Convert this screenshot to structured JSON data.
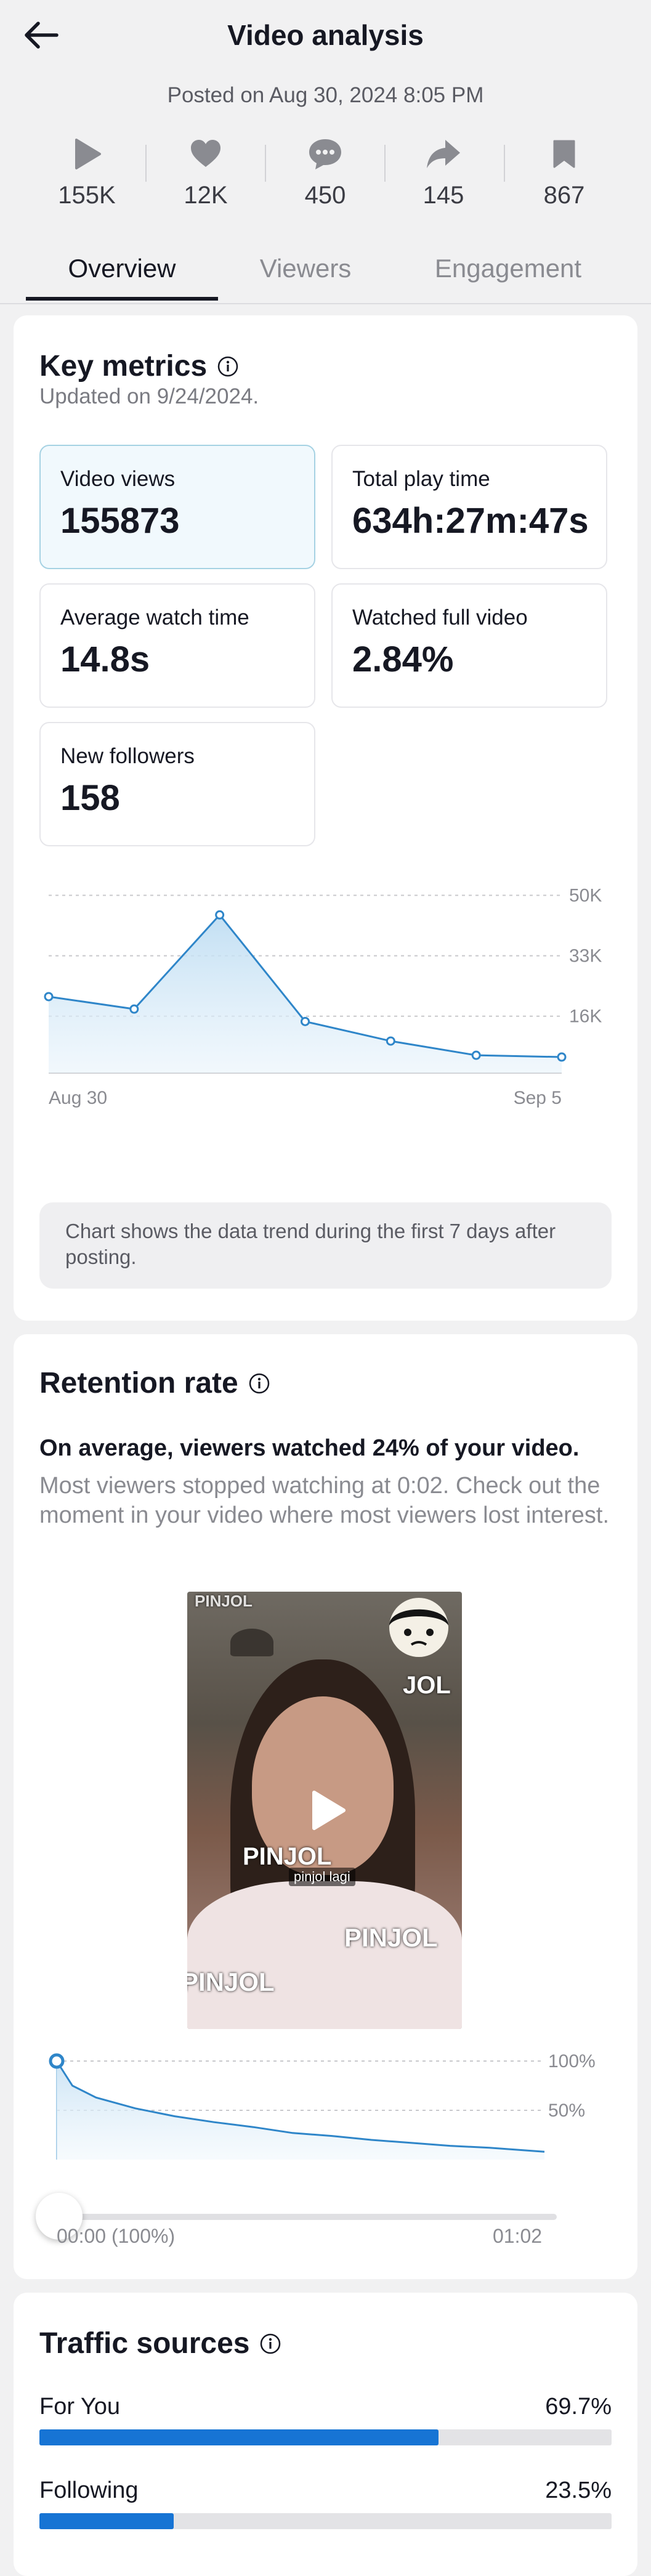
{
  "header": {
    "title": "Video analysis",
    "posted": "Posted on Aug 30, 2024 8:05 PM",
    "back_icon": "arrow-left-icon"
  },
  "stats": [
    {
      "icon": "play-icon",
      "value": "155K"
    },
    {
      "icon": "heart-icon",
      "value": "12K"
    },
    {
      "icon": "comment-icon",
      "value": "450"
    },
    {
      "icon": "share-icon",
      "value": "145"
    },
    {
      "icon": "bookmark-icon",
      "value": "867"
    }
  ],
  "tabs": [
    {
      "label": "Overview",
      "active": true
    },
    {
      "label": "Viewers",
      "active": false
    },
    {
      "label": "Engagement",
      "active": false
    }
  ],
  "key_metrics": {
    "title": "Key metrics",
    "updated": "Updated on 9/24/2024.",
    "metrics": [
      {
        "label": "Video views",
        "value": "155873",
        "selected": true
      },
      {
        "label": "Total play time",
        "value": "634h:27m:47s",
        "selected": false
      },
      {
        "label": "Average watch time",
        "value": "14.8s",
        "selected": false
      },
      {
        "label": "Watched full video",
        "value": "2.84%",
        "selected": false
      },
      {
        "label": "New followers",
        "value": "158",
        "selected": false
      }
    ],
    "note": "Chart shows the data trend during the first 7 days after posting."
  },
  "chart_data": [
    {
      "type": "line",
      "x": [
        "Aug 30",
        "Aug 31",
        "Sep 1",
        "Sep 2",
        "Sep 3",
        "Sep 4",
        "Sep 5"
      ],
      "x_tick_labels": [
        "Aug 30",
        "Sep 5"
      ],
      "values": [
        21500,
        18000,
        44500,
        14500,
        9000,
        5000,
        4500
      ],
      "y_ticks": [
        {
          "value": 50000,
          "label": "50K"
        },
        {
          "value": 33000,
          "label": "33K"
        },
        {
          "value": 16000,
          "label": "16K"
        }
      ],
      "ylim": [
        0,
        52000
      ],
      "grid": true,
      "color": "#2f86c9"
    },
    {
      "type": "area",
      "xlabel_start": "00:00 (100%)",
      "xlabel_end": "01:02",
      "x": [
        0,
        2,
        5,
        10,
        15,
        20,
        25,
        30,
        35,
        40,
        45,
        50,
        55,
        62
      ],
      "values": [
        100,
        75,
        63,
        52,
        44,
        38,
        33,
        27,
        24,
        20,
        17,
        14,
        12,
        8
      ],
      "y_ticks": [
        {
          "value": 100,
          "label": "100%"
        },
        {
          "value": 50,
          "label": "50%"
        }
      ],
      "ylim": [
        0,
        100
      ],
      "color": "#2f86c9",
      "slider_position": 0
    }
  ],
  "retention": {
    "title": "Retention rate",
    "lead": "On average, viewers watched 24% of your video.",
    "desc": "Most viewers stopped watching at 0:02. Check out the moment in your video where most viewers lost interest.",
    "thumb_texts": [
      "PINJOL",
      "PINJOL",
      "PINJOL",
      "PINJOL",
      "JOL"
    ],
    "thumb_caption": "pinjol lagi",
    "time_start": "00:00 (100%)",
    "time_end": "01:02"
  },
  "traffic": {
    "title": "Traffic sources",
    "sources": [
      {
        "name": "For You",
        "pct_label": "69.7%",
        "pct": 69.7
      },
      {
        "name": "Following",
        "pct_label": "23.5%",
        "pct": 23.5
      }
    ],
    "bar_color": "#1774d4"
  }
}
